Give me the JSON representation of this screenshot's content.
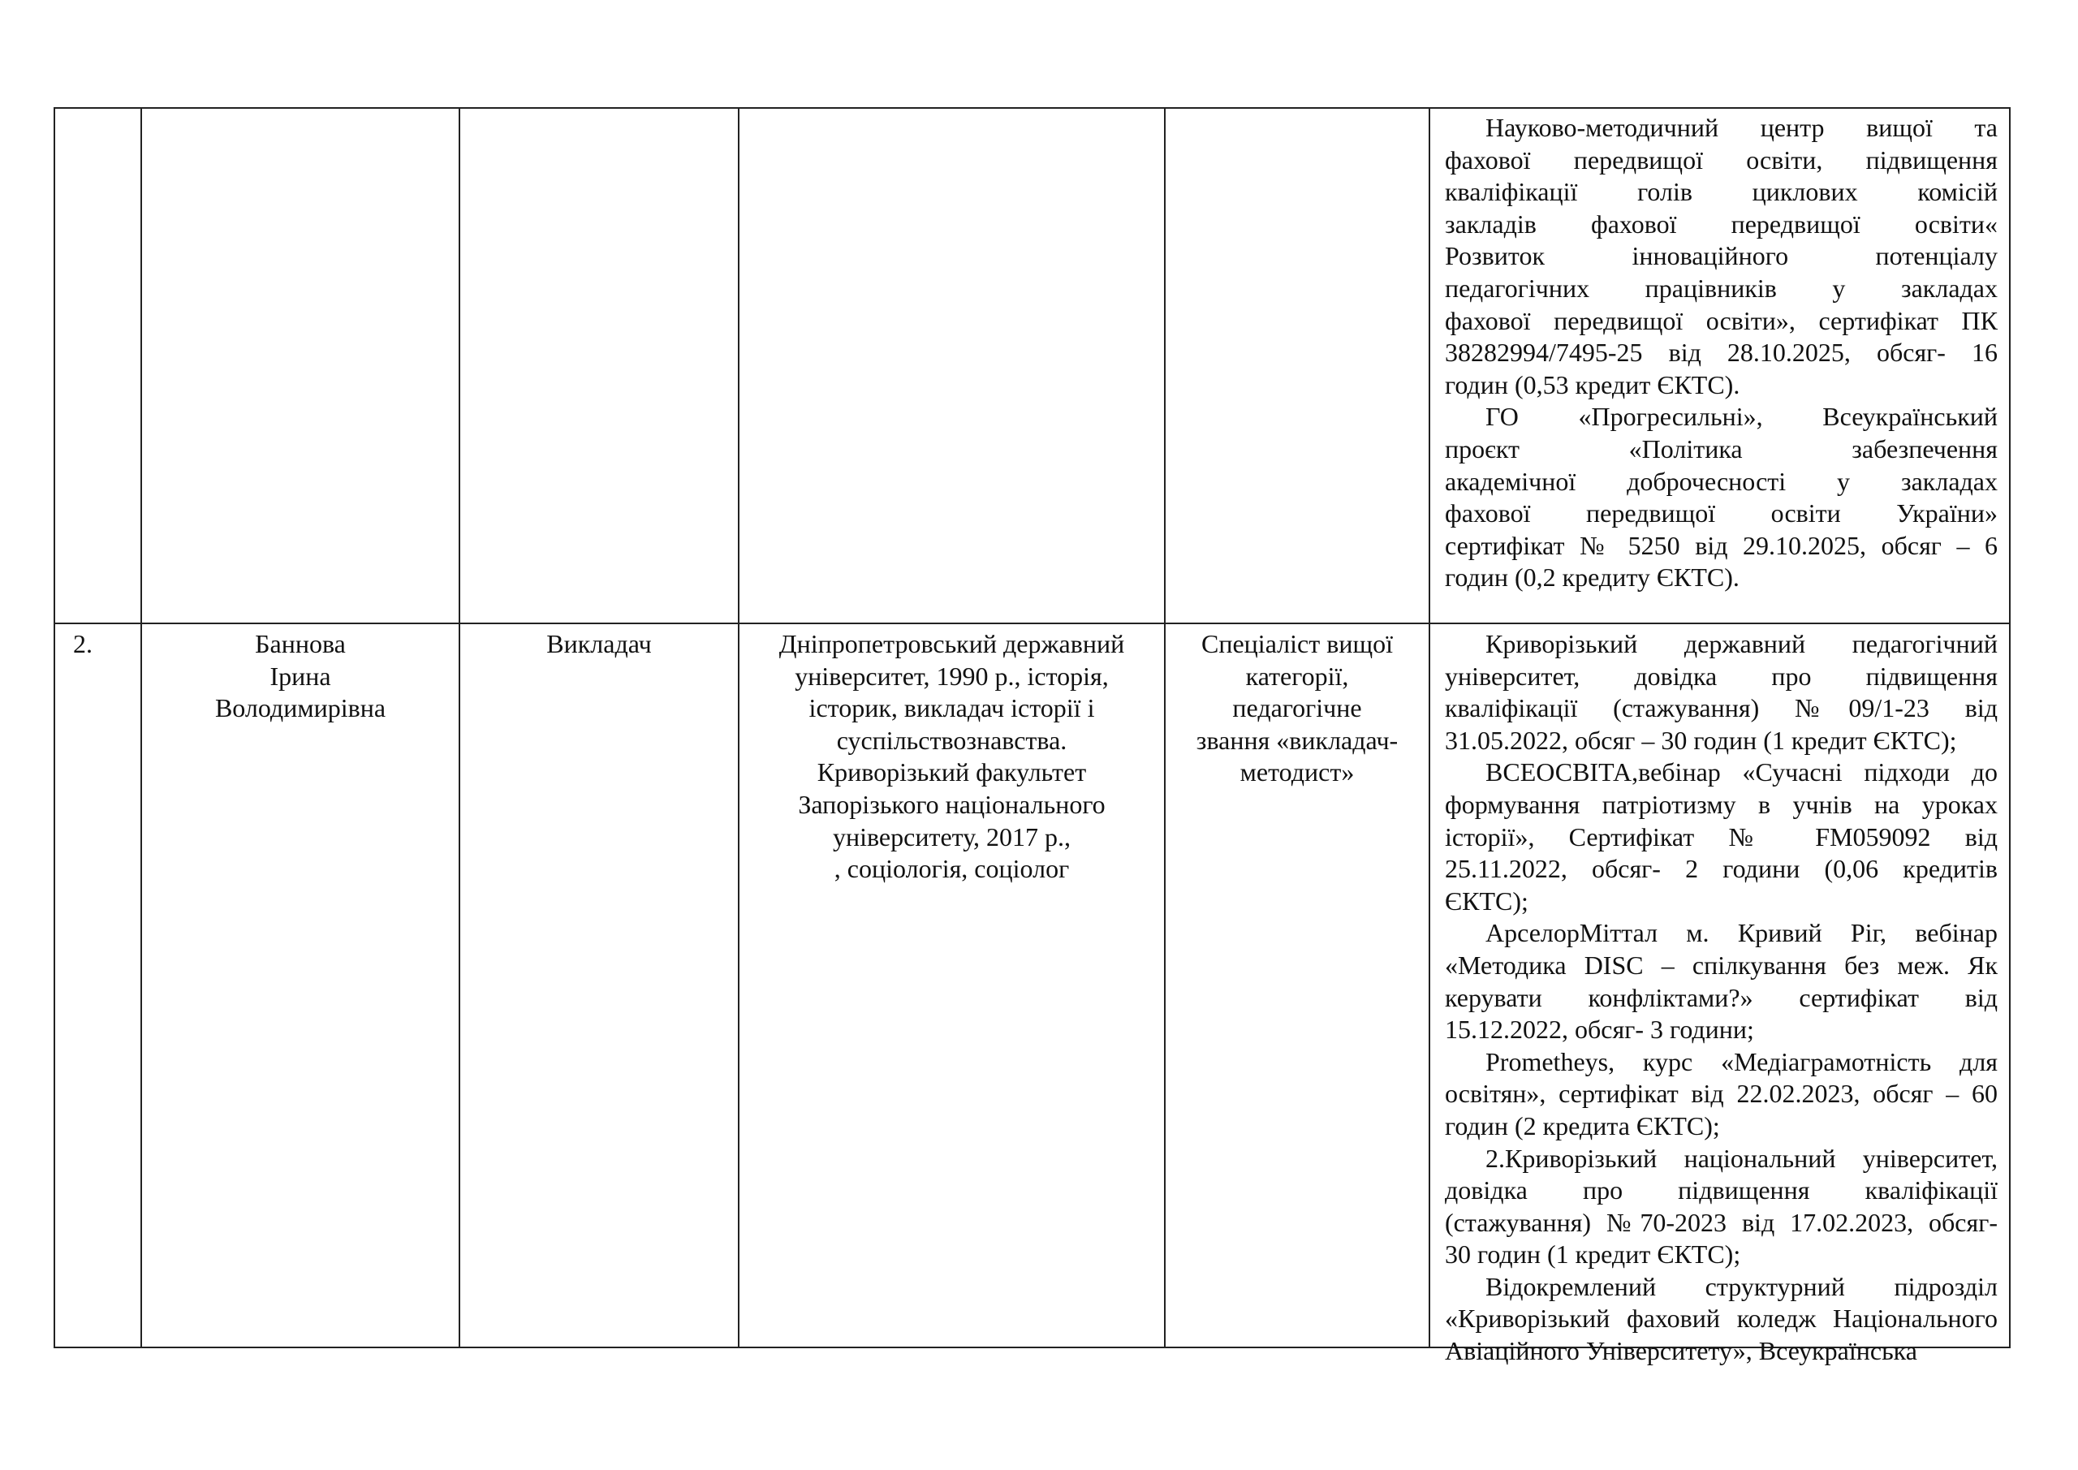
{
  "rows": [
    {
      "number": "",
      "name": [],
      "position": [],
      "education": [],
      "category": [],
      "training": [
        [
          "Науково-методичний центр вищої та",
          "фахової передвищої освіти, підвищення",
          "кваліфікації голів циклових комісій",
          "закладів фахової передвищої освіти«",
          "Розвиток інноваційного потенціалу",
          "педагогічних працівників у закладах",
          "фахової передвищої освіти», сертифікат ПК",
          "38282994/7495-25  від 28.10.2025, обсяг- 16",
          "годин          (0,53 кредит ЄКТС)."
        ],
        [
          "ГО «Прогресильні», Всеукраїнський",
          "проєкт «Політика забезпечення",
          "академічної доброчесності у закладах",
          "фахової передвищої освіти України»",
          "сертифікат № 5250 від 29.10.2025, обсяг – 6",
          "годин (0,2 кредиту ЄКТС)."
        ]
      ]
    },
    {
      "number": "2.",
      "name": [
        "Баннова",
        "Ірина",
        "Володимирівна"
      ],
      "position": [
        "Викладач"
      ],
      "education": [
        "Дніпропетровський державний",
        "університет, 1990 р., історія,",
        "історик, викладач історії і",
        "суспільствознавства.",
        "Криворізький факультет",
        "Запорізького національного",
        "університету, 2017 р.,",
        ", соціологія, соціолог"
      ],
      "category": [
        "Спеціаліст вищої",
        "категорії,",
        "педагогічне",
        "звання «викладач-",
        "методист»"
      ],
      "training": [
        [
          "Криворізький державний педагогічний",
          "університет, довідка про підвищення",
          "кваліфікації (стажування) №09/1-23 від",
          "31.05.2022, обсяг – 30 годин (1 кредит ЄКТС);"
        ],
        [
          "ВСЕОСВІТА,вебінар «Сучасні підходи до",
          "формування патріотизму в учнів на уроках",
          "історії», Сертифікат № FM059092 від",
          "25.11.2022, обсяг- 2 години (0,06 кредитів",
          "ЄКТС);"
        ],
        [
          "АрселорМіттал м. Кривий Ріг, вебінар",
          "«Методика DISC – спілкування без меж. Як",
          "керувати конфліктами?» сертифікат від",
          "15.12.2022, обсяг- 3 години;"
        ],
        [
          "Prometheys, курс «Медіаграмотність для",
          "освітян», сертифікат від 22.02.2023, обсяг – 60",
          "годин (2 кредита ЄКТС);"
        ],
        [
          "2.Криворізький національний університет,",
          "довідка про підвищення кваліфікації",
          "(стажування) №70-2023 від 17.02.2023, обсяг-",
          "30 годин (1 кредит ЄКТС);"
        ],
        [
          "Відокремлений структурний підрозділ",
          "«Криворізький фаховий коледж Національного",
          "Авіаційного Університету», Всеукраїнська"
        ]
      ]
    }
  ]
}
